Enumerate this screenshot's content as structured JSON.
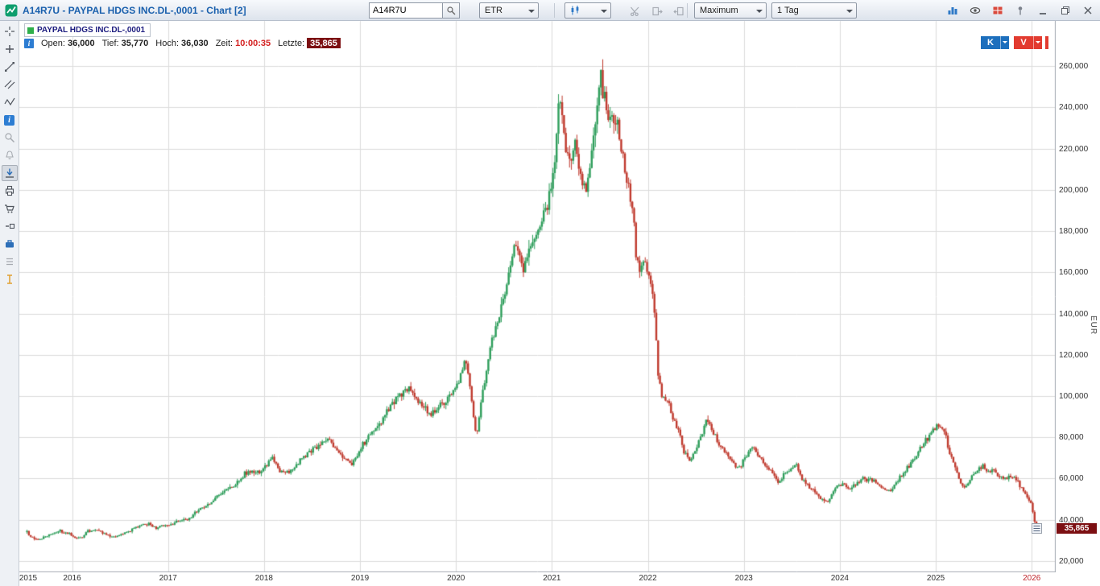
{
  "titlebar": {
    "title": "A14R7U - PAYPAL HDGS INC.DL-,0001 - Chart [2]",
    "symbol_input": "A14R7U",
    "exchange_select": "ETR",
    "period_select": "Maximum",
    "interval_select": "1 Tag",
    "right_icons": [
      "chart-columns-icon",
      "eye-icon",
      "layout-red-icon",
      "pin-icon",
      "minimize-icon",
      "restore-icon",
      "close-icon"
    ],
    "disabled_icons": [
      "cut-icon",
      "export-icon",
      "import-icon"
    ]
  },
  "left_toolbar": {
    "tools": [
      "pointer-tool",
      "crosshair-tool",
      "trendline-tool",
      "parallel-channel-tool",
      "zigzag-tool",
      "info-tool",
      "zoom-tool",
      "alert-tool",
      "save-chart-tool",
      "print-tool",
      "order-basket-tool",
      "compare-tool",
      "portfolio-tool",
      "template-tool",
      "text-tool"
    ]
  },
  "icons": {
    "info_glyph": "i"
  },
  "legend": {
    "instrument": "PAYPAL HDGS INC.DL-,0001",
    "marker_color": "#2faf4b"
  },
  "quote_bar": {
    "open_label": "Open:",
    "open_value": "36,000",
    "low_label": "Tief:",
    "low_value": "35,770",
    "high_label": "Hoch:",
    "high_value": "36,030",
    "time_label": "Zeit:",
    "time_value": "10:00:35",
    "last_label": "Letzte:",
    "last_value": "35,865"
  },
  "trade_buttons": {
    "buy_label": "K",
    "sell_label": "V",
    "buy_color": "#1d6fbd",
    "sell_color": "#e23b30"
  },
  "axes": {
    "currency_label": "EUR",
    "last_price_label": "35,865",
    "badge_color": "#7c0f12"
  },
  "chart_data": {
    "type": "candlestick",
    "series_name": "PAYPAL HDGS INC.DL-,0001",
    "currency": "EUR",
    "interval": "1 Tag",
    "range": "Maximum",
    "t_start": 2015.53,
    "t_end": 2026.05,
    "x_domain": [
      2015.45,
      2026.25
    ],
    "y_domain": [
      14.5,
      281.9
    ],
    "last_price": 35.865,
    "up_color": "#2e9e5b",
    "down_color": "#c03a2e",
    "grid_color": "#dcdcdc",
    "y_axis": {
      "ticks": [
        20,
        40,
        60,
        80,
        100,
        120,
        140,
        160,
        180,
        200,
        220,
        240,
        260
      ],
      "tick_labels": [
        "20,000",
        "40,000",
        "60,000",
        "80,000",
        "100,000",
        "120,000",
        "140,000",
        "160,000",
        "180,000",
        "200,000",
        "220,000",
        "240,000",
        "260,000"
      ]
    },
    "x_ticks": [
      {
        "year": 2015,
        "label": "2015"
      },
      {
        "year": 2016,
        "label": "2016"
      },
      {
        "year": 2017,
        "label": "2017"
      },
      {
        "year": 2018,
        "label": "2018"
      },
      {
        "year": 2019,
        "label": "2019"
      },
      {
        "year": 2020,
        "label": "2020"
      },
      {
        "year": 2021,
        "label": "2021"
      },
      {
        "year": 2022,
        "label": "2022"
      },
      {
        "year": 2023,
        "label": "2023"
      },
      {
        "year": 2024,
        "label": "2024"
      },
      {
        "year": 2025,
        "label": "2025"
      },
      {
        "year": 2026,
        "label": "2026",
        "color": "#c1272d"
      }
    ],
    "anchors_description": "approximate close-price path in EUR read from the chart; candles synthesized from it",
    "anchors": [
      [
        2015.53,
        34
      ],
      [
        2015.58,
        31.5
      ],
      [
        2015.65,
        30.5
      ],
      [
        2015.72,
        31.5
      ],
      [
        2015.79,
        33.5
      ],
      [
        2015.88,
        34.5
      ],
      [
        2015.96,
        33.5
      ],
      [
        2016.04,
        31
      ],
      [
        2016.1,
        31.5
      ],
      [
        2016.17,
        34.5
      ],
      [
        2016.25,
        35
      ],
      [
        2016.33,
        33.5
      ],
      [
        2016.42,
        31.5
      ],
      [
        2016.5,
        32.5
      ],
      [
        2016.58,
        34
      ],
      [
        2016.65,
        36
      ],
      [
        2016.72,
        37.5
      ],
      [
        2016.8,
        38
      ],
      [
        2016.88,
        36
      ],
      [
        2016.96,
        37
      ],
      [
        2017.04,
        38
      ],
      [
        2017.12,
        39.5
      ],
      [
        2017.21,
        40.5
      ],
      [
        2017.29,
        43.5
      ],
      [
        2017.37,
        46.5
      ],
      [
        2017.46,
        48.5
      ],
      [
        2017.54,
        53
      ],
      [
        2017.62,
        55
      ],
      [
        2017.71,
        57.5
      ],
      [
        2017.79,
        62
      ],
      [
        2017.87,
        64
      ],
      [
        2017.96,
        63
      ],
      [
        2018.04,
        67
      ],
      [
        2018.1,
        70
      ],
      [
        2018.15,
        64
      ],
      [
        2018.21,
        62.5
      ],
      [
        2018.29,
        64.5
      ],
      [
        2018.37,
        68.5
      ],
      [
        2018.46,
        72
      ],
      [
        2018.54,
        74.5
      ],
      [
        2018.6,
        77.5
      ],
      [
        2018.68,
        79
      ],
      [
        2018.75,
        74
      ],
      [
        2018.83,
        70.5
      ],
      [
        2018.9,
        66.5
      ],
      [
        2018.96,
        70
      ],
      [
        2019.04,
        77
      ],
      [
        2019.12,
        82.5
      ],
      [
        2019.21,
        86
      ],
      [
        2019.29,
        93
      ],
      [
        2019.37,
        98
      ],
      [
        2019.46,
        102.5
      ],
      [
        2019.52,
        104.5
      ],
      [
        2019.6,
        98
      ],
      [
        2019.67,
        94
      ],
      [
        2019.75,
        91
      ],
      [
        2019.83,
        95.5
      ],
      [
        2019.9,
        97.5
      ],
      [
        2019.96,
        101
      ],
      [
        2020.04,
        109
      ],
      [
        2020.1,
        118
      ],
      [
        2020.14,
        108
      ],
      [
        2020.18,
        92
      ],
      [
        2020.21,
        79
      ],
      [
        2020.26,
        96
      ],
      [
        2020.31,
        110
      ],
      [
        2020.37,
        126
      ],
      [
        2020.44,
        136
      ],
      [
        2020.5,
        148
      ],
      [
        2020.54,
        158
      ],
      [
        2020.6,
        172
      ],
      [
        2020.65,
        168
      ],
      [
        2020.71,
        160
      ],
      [
        2020.77,
        172
      ],
      [
        2020.83,
        178
      ],
      [
        2020.9,
        185
      ],
      [
        2020.96,
        193
      ],
      [
        2021.04,
        220
      ],
      [
        2021.08,
        248
      ],
      [
        2021.13,
        226
      ],
      [
        2021.18,
        212
      ],
      [
        2021.24,
        222
      ],
      [
        2021.3,
        210
      ],
      [
        2021.36,
        199
      ],
      [
        2021.42,
        218
      ],
      [
        2021.46,
        240
      ],
      [
        2021.5,
        257
      ],
      [
        2021.55,
        243
      ],
      [
        2021.6,
        232
      ],
      [
        2021.65,
        238
      ],
      [
        2021.7,
        228
      ],
      [
        2021.75,
        214
      ],
      [
        2021.79,
        204
      ],
      [
        2021.84,
        190
      ],
      [
        2021.88,
        168
      ],
      [
        2021.92,
        160
      ],
      [
        2021.96,
        166
      ],
      [
        2022.04,
        152
      ],
      [
        2022.08,
        135
      ],
      [
        2022.11,
        108
      ],
      [
        2022.15,
        100
      ],
      [
        2022.21,
        98
      ],
      [
        2022.27,
        88
      ],
      [
        2022.33,
        82
      ],
      [
        2022.38,
        72
      ],
      [
        2022.44,
        68
      ],
      [
        2022.5,
        74
      ],
      [
        2022.56,
        82
      ],
      [
        2022.62,
        89
      ],
      [
        2022.67,
        84
      ],
      [
        2022.73,
        78
      ],
      [
        2022.79,
        74
      ],
      [
        2022.85,
        70
      ],
      [
        2022.92,
        65
      ],
      [
        2022.96,
        66
      ],
      [
        2023.04,
        72
      ],
      [
        2023.1,
        75.5
      ],
      [
        2023.17,
        70
      ],
      [
        2023.23,
        67
      ],
      [
        2023.29,
        63
      ],
      [
        2023.35,
        58
      ],
      [
        2023.42,
        61.5
      ],
      [
        2023.48,
        64
      ],
      [
        2023.54,
        67.5
      ],
      [
        2023.6,
        60
      ],
      [
        2023.67,
        56.5
      ],
      [
        2023.73,
        54
      ],
      [
        2023.79,
        50.5
      ],
      [
        2023.85,
        48
      ],
      [
        2023.92,
        52
      ],
      [
        2023.96,
        56
      ],
      [
        2024.04,
        57.5
      ],
      [
        2024.1,
        54.5
      ],
      [
        2024.17,
        57
      ],
      [
        2024.23,
        60.5
      ],
      [
        2024.29,
        58.5
      ],
      [
        2024.35,
        59.5
      ],
      [
        2024.42,
        56
      ],
      [
        2024.48,
        54
      ],
      [
        2024.54,
        54.5
      ],
      [
        2024.6,
        59
      ],
      [
        2024.67,
        63.5
      ],
      [
        2024.73,
        67
      ],
      [
        2024.79,
        71
      ],
      [
        2024.85,
        76
      ],
      [
        2024.92,
        80
      ],
      [
        2024.98,
        84.5
      ],
      [
        2025.04,
        86
      ],
      [
        2025.1,
        81
      ],
      [
        2025.15,
        72
      ],
      [
        2025.21,
        64
      ],
      [
        2025.27,
        57
      ],
      [
        2025.31,
        55
      ],
      [
        2025.37,
        60.5
      ],
      [
        2025.44,
        64.5
      ],
      [
        2025.5,
        66.5
      ],
      [
        2025.54,
        63
      ],
      [
        2025.6,
        64.5
      ],
      [
        2025.65,
        61.5
      ],
      [
        2025.71,
        59.5
      ],
      [
        2025.77,
        62
      ],
      [
        2025.83,
        60
      ],
      [
        2025.88,
        56.5
      ],
      [
        2025.92,
        53
      ],
      [
        2025.96,
        50.5
      ],
      [
        2026.0,
        47
      ],
      [
        2026.02,
        41
      ],
      [
        2026.045,
        35.865
      ]
    ]
  }
}
